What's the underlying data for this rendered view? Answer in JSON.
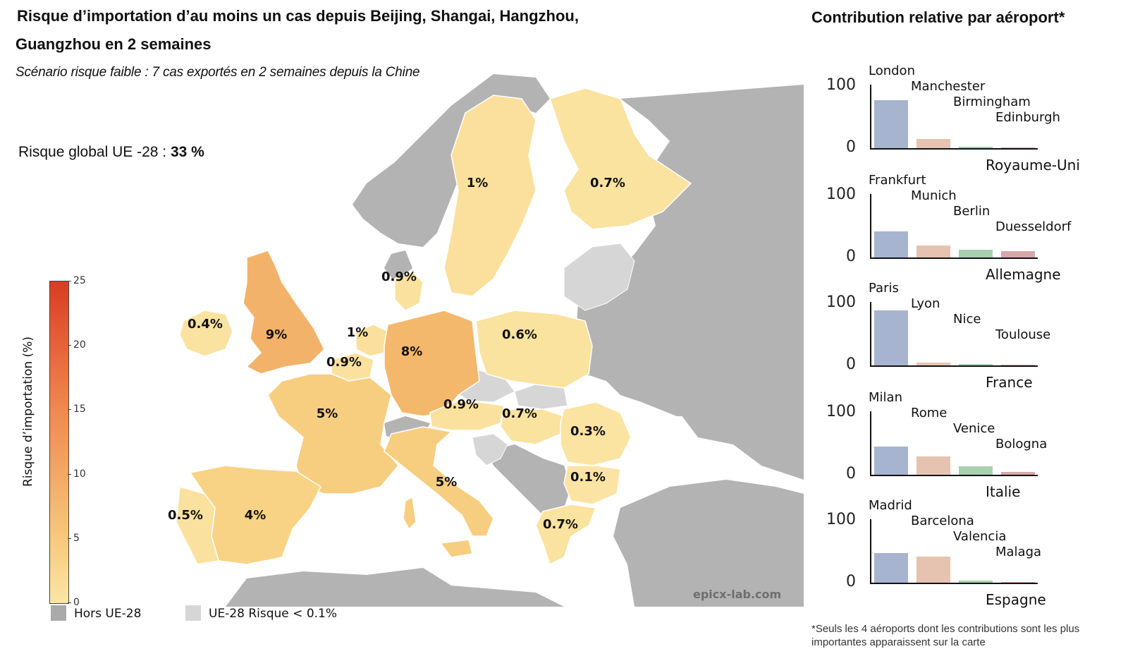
{
  "title_line1": "Risque d’importation d’au moins un cas depuis Beijing, Shangai, Hangzhou,",
  "title_line2": "Guangzhou en 2 semaines",
  "subtitle": "Scénario risque faible :  7 cas exportés en 2 semaines depuis la Chine",
  "global_risk": {
    "label": "Risque global UE -28 : ",
    "value": "33 %"
  },
  "watermark": "epicx-lab.com",
  "colors": {
    "non_eu": "#b3b3b3",
    "eu_low": "#d6d6d6",
    "sea": "#ffffff",
    "border": "#ffffff"
  },
  "countries": [
    {
      "name": "Royaume-Uni",
      "risk": 9,
      "label": "9%",
      "color": "#f3b269"
    },
    {
      "name": "Irlande",
      "risk": 0.4,
      "label": "0.4%",
      "color": "#fae2a0"
    },
    {
      "name": "France",
      "risk": 5,
      "label": "5%",
      "color": "#f7cd80"
    },
    {
      "name": "Espagne",
      "risk": 4,
      "label": "4%",
      "color": "#f8d385"
    },
    {
      "name": "Portugal",
      "risk": 0.5,
      "label": "0.5%",
      "color": "#fae1a0"
    },
    {
      "name": "Allemagne",
      "risk": 8,
      "label": "8%",
      "color": "#f4b86c"
    },
    {
      "name": "Italie",
      "risk": 5,
      "label": "5%",
      "color": "#f7cd80"
    },
    {
      "name": "Pays-Bas",
      "risk": 1,
      "label": "1%",
      "color": "#fae09c"
    },
    {
      "name": "Belgique",
      "risk": 0.9,
      "label": "0.9%",
      "color": "#fae19e"
    },
    {
      "name": "Danemark",
      "risk": 0.9,
      "label": "0.9%",
      "color": "#fae19e"
    },
    {
      "name": "Suède",
      "risk": 1,
      "label": "1%",
      "color": "#fae09c"
    },
    {
      "name": "Finlande",
      "risk": 0.7,
      "label": "0.7%",
      "color": "#fae29f"
    },
    {
      "name": "Pologne",
      "risk": 0.6,
      "label": "0.6%",
      "color": "#fae29f"
    },
    {
      "name": "Autriche",
      "risk": 0.9,
      "label": "0.9%",
      "color": "#fae19e"
    },
    {
      "name": "Hongrie",
      "risk": 0.7,
      "label": "0.7%",
      "color": "#fae29f"
    },
    {
      "name": "Roumanie",
      "risk": 0.3,
      "label": "0.3%",
      "color": "#fbe3a1"
    },
    {
      "name": "Bulgarie",
      "risk": 0.1,
      "label": "0.1%",
      "color": "#fbe4a3"
    },
    {
      "name": "Grèce",
      "risk": 0.7,
      "label": "0.7%",
      "color": "#fae29f"
    }
  ],
  "colorbar": {
    "title": "Risque d’importation (%)",
    "min": 0,
    "max": 25,
    "ticks": [
      "0",
      "5",
      "10",
      "15",
      "20",
      "25"
    ],
    "colors": [
      "#fbe6a4",
      "#d83d22"
    ]
  },
  "legend": [
    {
      "label": "Hors UE-28",
      "color": "#aaaaaa"
    },
    {
      "label": "UE-28 Risque < 0.1%",
      "color": "#d6d6d6"
    }
  ],
  "right_title": "Contribution relative par aéroport*",
  "footnote": "*Seuls les 4 aéroports dont les contributions sont les plus importantes apparaissent sur la carte",
  "chart_data": [
    {
      "type": "bar",
      "title": "Royaume-Uni",
      "ylim": [
        0,
        100
      ],
      "yticks": [
        "100",
        "0"
      ],
      "categories": [
        "London",
        "Manchester",
        "Birmingham",
        "Edinburgh"
      ],
      "values": [
        76,
        14,
        2,
        1
      ]
    },
    {
      "type": "bar",
      "title": "Allemagne",
      "ylim": [
        0,
        100
      ],
      "yticks": [
        "100",
        "0"
      ],
      "categories": [
        "Frankfurt",
        "Munich",
        "Berlin",
        "Duesseldorf"
      ],
      "values": [
        41,
        19,
        12,
        10
      ]
    },
    {
      "type": "bar",
      "title": "France",
      "ylim": [
        0,
        100
      ],
      "yticks": [
        "100",
        "0"
      ],
      "categories": [
        "Paris",
        "Lyon",
        "Nice",
        "Toulouse"
      ],
      "values": [
        87,
        4,
        2,
        1
      ]
    },
    {
      "type": "bar",
      "title": "Italie",
      "ylim": [
        0,
        100
      ],
      "yticks": [
        "100",
        "0"
      ],
      "categories": [
        "Milan",
        "Rome",
        "Venice",
        "Bologna"
      ],
      "values": [
        44,
        29,
        13,
        4
      ]
    },
    {
      "type": "bar",
      "title": "Espagne",
      "ylim": [
        0,
        100
      ],
      "yticks": [
        "100",
        "0"
      ],
      "categories": [
        "Madrid",
        "Barcelona",
        "Valencia",
        "Malaga"
      ],
      "values": [
        47,
        41,
        3,
        1
      ]
    }
  ],
  "bar_colors": [
    "#a7b4d0",
    "#e6c3b1",
    "#a9cfb1",
    "#d6a8ac"
  ]
}
